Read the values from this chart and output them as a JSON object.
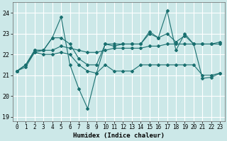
{
  "background_color": "#cce8e8",
  "grid_color": "#ffffff",
  "line_color": "#1a7070",
  "xlabel": "Humidex (Indice chaleur)",
  "ylim": [
    18.8,
    24.5
  ],
  "yticks": [
    19,
    20,
    21,
    22,
    23,
    24
  ],
  "xlim": [
    -0.5,
    23.5
  ],
  "xticks": [
    0,
    1,
    2,
    3,
    4,
    5,
    6,
    7,
    8,
    9,
    10,
    11,
    12,
    13,
    14,
    15,
    16,
    17,
    18,
    19,
    20,
    21,
    22,
    23
  ],
  "series1": [
    21.2,
    21.5,
    22.2,
    22.2,
    22.8,
    23.8,
    21.5,
    20.35,
    19.4,
    21.1,
    22.5,
    22.4,
    22.5,
    22.5,
    22.5,
    23.1,
    22.8,
    24.1,
    22.2,
    23.0,
    22.5,
    20.85,
    20.9,
    21.1
  ],
  "series2": [
    21.2,
    21.5,
    22.2,
    22.2,
    22.8,
    22.8,
    22.5,
    21.8,
    21.5,
    21.5,
    22.5,
    22.5,
    22.5,
    22.5,
    22.5,
    23.0,
    22.8,
    23.0,
    22.6,
    22.9,
    22.5,
    22.5,
    22.5,
    22.5
  ],
  "series3": [
    21.2,
    21.4,
    22.1,
    22.2,
    22.2,
    22.4,
    22.3,
    22.2,
    22.1,
    22.1,
    22.2,
    22.3,
    22.3,
    22.3,
    22.3,
    22.4,
    22.4,
    22.5,
    22.5,
    22.5,
    22.5,
    22.5,
    22.5,
    22.6
  ],
  "series4": [
    21.2,
    21.5,
    22.1,
    22.0,
    22.0,
    22.1,
    22.0,
    21.5,
    21.2,
    21.1,
    21.5,
    21.2,
    21.2,
    21.2,
    21.5,
    21.5,
    21.5,
    21.5,
    21.5,
    21.5,
    21.5,
    21.0,
    21.0,
    21.1
  ]
}
